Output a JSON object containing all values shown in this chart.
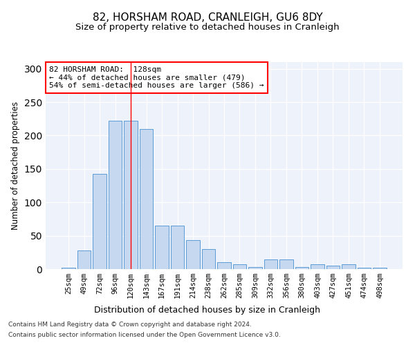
{
  "title1": "82, HORSHAM ROAD, CRANLEIGH, GU6 8DY",
  "title2": "Size of property relative to detached houses in Cranleigh",
  "xlabel": "Distribution of detached houses by size in Cranleigh",
  "ylabel": "Number of detached properties",
  "categories": [
    "25sqm",
    "49sqm",
    "72sqm",
    "96sqm",
    "120sqm",
    "143sqm",
    "167sqm",
    "191sqm",
    "214sqm",
    "238sqm",
    "262sqm",
    "285sqm",
    "309sqm",
    "332sqm",
    "356sqm",
    "380sqm",
    "403sqm",
    "427sqm",
    "451sqm",
    "474sqm",
    "498sqm"
  ],
  "values": [
    2,
    28,
    143,
    222,
    222,
    210,
    65,
    65,
    43,
    30,
    10,
    7,
    3,
    14,
    14,
    3,
    7,
    5,
    7,
    2,
    2
  ],
  "bar_color": "#c5d8f0",
  "bar_edge_color": "#5b9bd5",
  "background_color": "#eef2fa",
  "vline_x": 4,
  "vline_color": "red",
  "annotation_text": "82 HORSHAM ROAD:  128sqm\n← 44% of detached houses are smaller (479)\n54% of semi-detached houses are larger (586) →",
  "annotation_box_color": "white",
  "annotation_box_edge": "red",
  "footnote1": "Contains HM Land Registry data © Crown copyright and database right 2024.",
  "footnote2": "Contains public sector information licensed under the Open Government Licence v3.0.",
  "ylim": [
    0,
    310
  ],
  "title1_fontsize": 11,
  "title2_fontsize": 9.5,
  "xlabel_fontsize": 9,
  "ylabel_fontsize": 8.5,
  "tick_fontsize": 7.5,
  "annotation_fontsize": 8,
  "footnote_fontsize": 6.5
}
